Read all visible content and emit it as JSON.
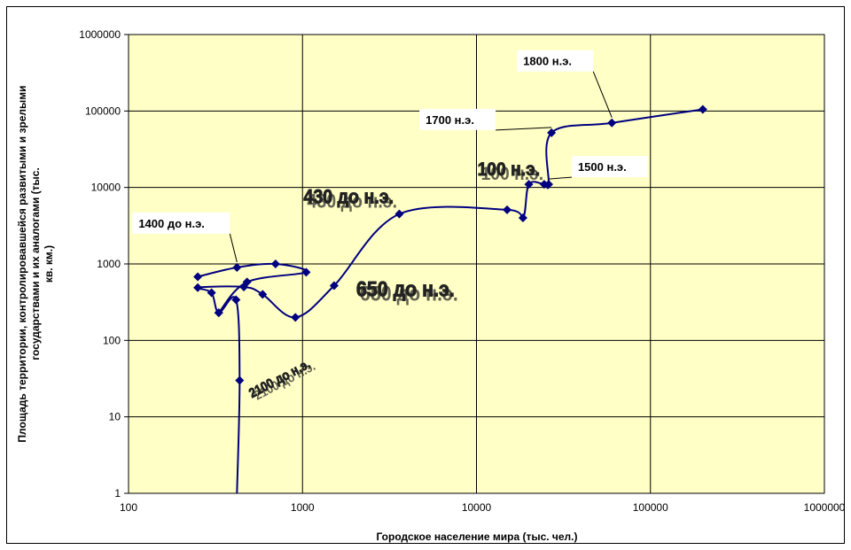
{
  "chart_data": {
    "type": "scatter",
    "title": "",
    "xlabel": "Городское население мира (тыс. чел.)",
    "ylabel": "Площадь территории, контролировавшейся развитыми и зрелыми государствами и их аналогами (тыс. кв. км.)",
    "ylabel_lines": [
      "Площадь территории, контролировавшейся развитыми и зрелыми",
      "государствами и их аналогами (тыс.",
      "кв. км.)"
    ],
    "x_scale": "log",
    "y_scale": "log",
    "xlim": [
      100,
      1000000
    ],
    "ylim": [
      1,
      1000000
    ],
    "x_ticks": [
      "100",
      "1000",
      "10000",
      "100000",
      "1000000"
    ],
    "y_ticks": [
      "1",
      "10",
      "100",
      "1000",
      "10000",
      "100000",
      "1000000"
    ],
    "grid": true,
    "plot_background": "#FFFFC6",
    "series_color": "#000080",
    "series": [
      {
        "points": [
          [
            420,
            1
          ],
          [
            435,
            30
          ],
          [
            415,
            340
          ],
          [
            330,
            230
          ],
          [
            300,
            420
          ],
          [
            250,
            490
          ],
          [
            460,
            500
          ],
          [
            590,
            400
          ],
          [
            910,
            200
          ],
          [
            1520,
            520
          ],
          [
            3600,
            4500
          ],
          [
            15000,
            5100
          ],
          [
            18500,
            4000
          ],
          [
            20000,
            11000
          ],
          [
            24500,
            11000
          ],
          [
            26000,
            11000
          ],
          [
            27000,
            52000
          ],
          [
            60000,
            70000
          ],
          [
            200000,
            105000
          ]
        ]
      },
      {
        "points": [
          [
            250,
            680
          ],
          [
            420,
            900
          ],
          [
            700,
            1000
          ],
          [
            1050,
            780
          ],
          [
            480,
            580
          ],
          [
            330,
            230
          ]
        ]
      }
    ],
    "annotations": [
      {
        "text": "1800 н.э.",
        "style": "box",
        "x": 60000,
        "y": 70000
      },
      {
        "text": "1700 н.э.",
        "style": "box",
        "x": 27000,
        "y": 52000
      },
      {
        "text": "1500 н.э.",
        "style": "box",
        "x": 26000,
        "y": 11000
      },
      {
        "text": "1400 до н.э.",
        "style": "box",
        "x": 420,
        "y": 900
      },
      {
        "text": "100 н.э.",
        "style": "sketch",
        "x": 20000,
        "y": 11000
      },
      {
        "text": "430 до н.э.",
        "style": "sketch",
        "x": 3600,
        "y": 4500
      },
      {
        "text": "650 до н.э.",
        "style": "sketch",
        "x": 1520,
        "y": 520
      },
      {
        "text": "2100 до н.э.",
        "style": "sketch",
        "x": 435,
        "y": 30
      }
    ]
  }
}
